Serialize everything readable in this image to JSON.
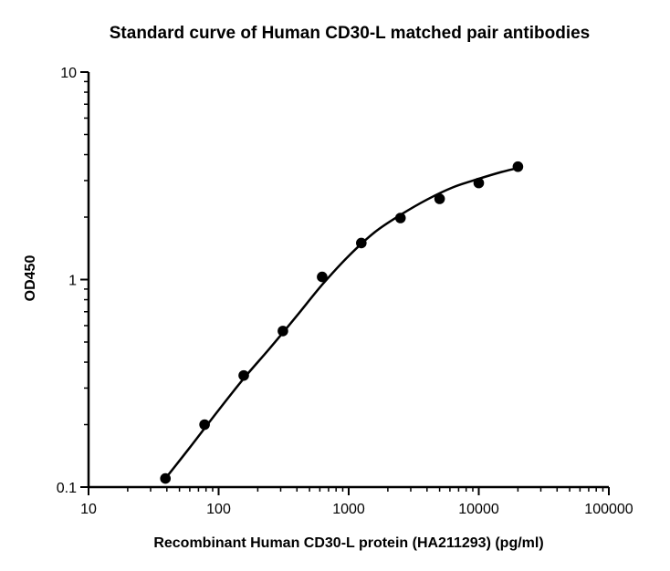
{
  "chart_data": {
    "type": "scatter",
    "title": "Standard curve of Human CD30-L matched pair antibodies",
    "xlabel": "Recombinant Human CD30-L protein (HA211293) (pg/ml)",
    "ylabel": "OD450",
    "xscale": "log",
    "yscale": "log",
    "xlim": [
      10,
      100000
    ],
    "ylim": [
      0.1,
      10
    ],
    "x_ticks": [
      {
        "value": 10,
        "label": "10"
      },
      {
        "value": 100,
        "label": "100"
      },
      {
        "value": 1000,
        "label": "1000"
      },
      {
        "value": 10000,
        "label": "10000"
      },
      {
        "value": 100000,
        "label": "100000"
      }
    ],
    "y_ticks": [
      {
        "value": 0.1,
        "label": "0.1"
      },
      {
        "value": 1,
        "label": "1"
      },
      {
        "value": 10,
        "label": "10"
      }
    ],
    "grid": false,
    "points": {
      "x": [
        39,
        78,
        156,
        312,
        625,
        1250,
        2500,
        5000,
        10000,
        20000
      ],
      "y": [
        0.11,
        0.2,
        0.345,
        0.565,
        1.03,
        1.5,
        1.98,
        2.45,
        2.92,
        3.5
      ]
    },
    "fit_curve": {
      "x": [
        39,
        60,
        100,
        160,
        250,
        400,
        630,
        1000,
        1600,
        2500,
        4000,
        6300,
        10000,
        15000,
        20000
      ],
      "y": [
        0.11,
        0.155,
        0.235,
        0.34,
        0.47,
        0.67,
        0.95,
        1.3,
        1.7,
        2.05,
        2.43,
        2.78,
        3.06,
        3.3,
        3.45
      ]
    },
    "marker_color": "#000000",
    "line_color": "#000000"
  }
}
